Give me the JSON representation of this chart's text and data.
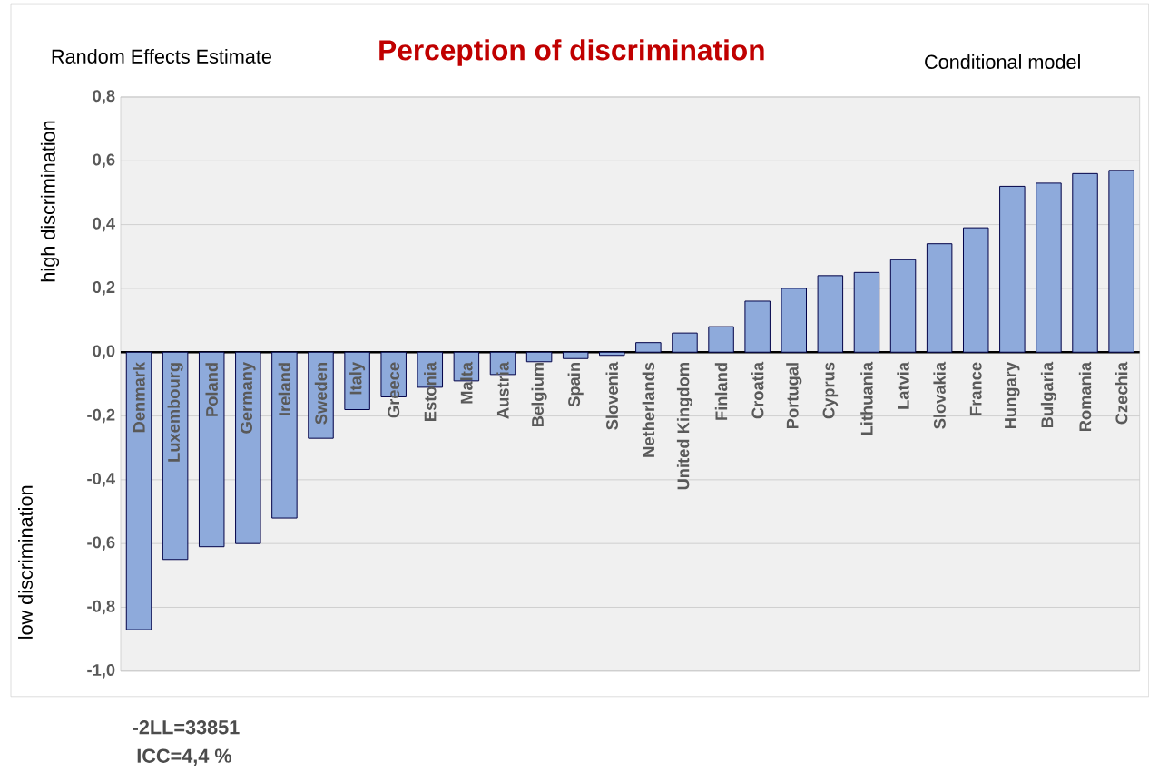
{
  "chart_data": {
    "type": "bar",
    "title": "Perception of discrimination",
    "annotations": [
      "Random Effects Estimate",
      "Conditional model",
      "high discrimination",
      "low discrimination",
      "-2LL=33851",
      "ICC=4,4 %"
    ],
    "categories": [
      "Denmark",
      "Luxembourg",
      "Poland",
      "Germany",
      "Ireland",
      "Sweden",
      "Italy",
      "Greece",
      "Estonia",
      "Malta",
      "Austria",
      "Belgium",
      "Spain",
      "Slovenia",
      "Netherlands",
      "United Kingdom",
      "Finland",
      "Croatia",
      "Portugal",
      "Cyprus",
      "Lithuania",
      "Latvia",
      "Slovakia",
      "France",
      "Hungary",
      "Bulgaria",
      "Romania",
      "Czechia"
    ],
    "values": [
      -0.87,
      -0.65,
      -0.61,
      -0.6,
      -0.52,
      -0.27,
      -0.18,
      -0.14,
      -0.11,
      -0.09,
      -0.07,
      -0.03,
      -0.02,
      -0.01,
      0.03,
      0.06,
      0.08,
      0.16,
      0.2,
      0.24,
      0.25,
      0.29,
      0.34,
      0.39,
      0.52,
      0.53,
      0.56,
      0.57
    ],
    "color": "#8eaadb",
    "ylim": [
      -1.0,
      0.8
    ],
    "yticks": [
      {
        "value": -1.0,
        "label": "-1,0"
      },
      {
        "value": -0.8,
        "label": "-0,8"
      },
      {
        "value": -0.6,
        "label": "-0,6"
      },
      {
        "value": -0.4,
        "label": "-0,4"
      },
      {
        "value": -0.2,
        "label": "-0,2"
      },
      {
        "value": 0.0,
        "label": "0,0"
      },
      {
        "value": 0.2,
        "label": "0,2"
      },
      {
        "value": 0.4,
        "label": "0,4"
      },
      {
        "value": 0.6,
        "label": "0,6"
      },
      {
        "value": 0.8,
        "label": "0,8"
      }
    ],
    "grid": "y"
  }
}
